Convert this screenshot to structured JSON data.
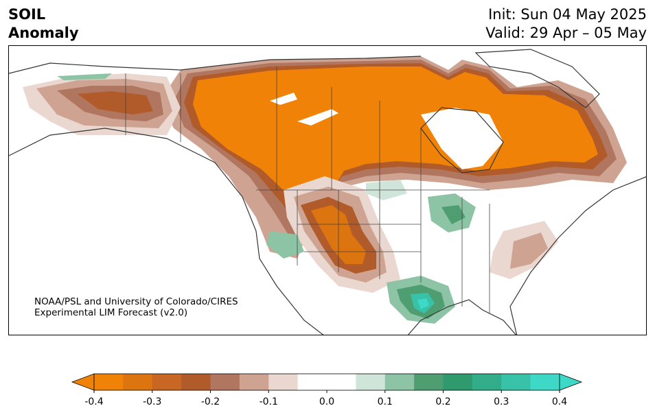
{
  "title": {
    "line1": "SOIL",
    "line2": "Anomaly"
  },
  "dates": {
    "init": "Init: Sun 04 May 2025",
    "valid": "Valid: 29 Apr – 05 May"
  },
  "credit": {
    "line1": "NOAA/PSL and University of Colorado/CIRES",
    "line2": "Experimental LIM Forecast (v2.0)"
  },
  "colorbar": {
    "min": -0.4,
    "max": 0.4,
    "ticks": [
      "-0.4",
      "-0.3",
      "-0.2",
      "-0.1",
      "0.0",
      "0.1",
      "0.2",
      "0.3",
      "0.4"
    ],
    "colors": [
      "#f08307",
      "#dc740f",
      "#c86623",
      "#b25b2a",
      "#b0765f",
      "#cfa391",
      "#ead8d0",
      "#ffffff",
      "#ffffff",
      "#cfe5da",
      "#8ec4a6",
      "#4f9e72",
      "#2f9a6e",
      "#32ad8a",
      "#38c3a8",
      "#3ed8c6"
    ],
    "extend_low_color": "#f08307",
    "extend_high_color": "#3ed8c6"
  }
}
